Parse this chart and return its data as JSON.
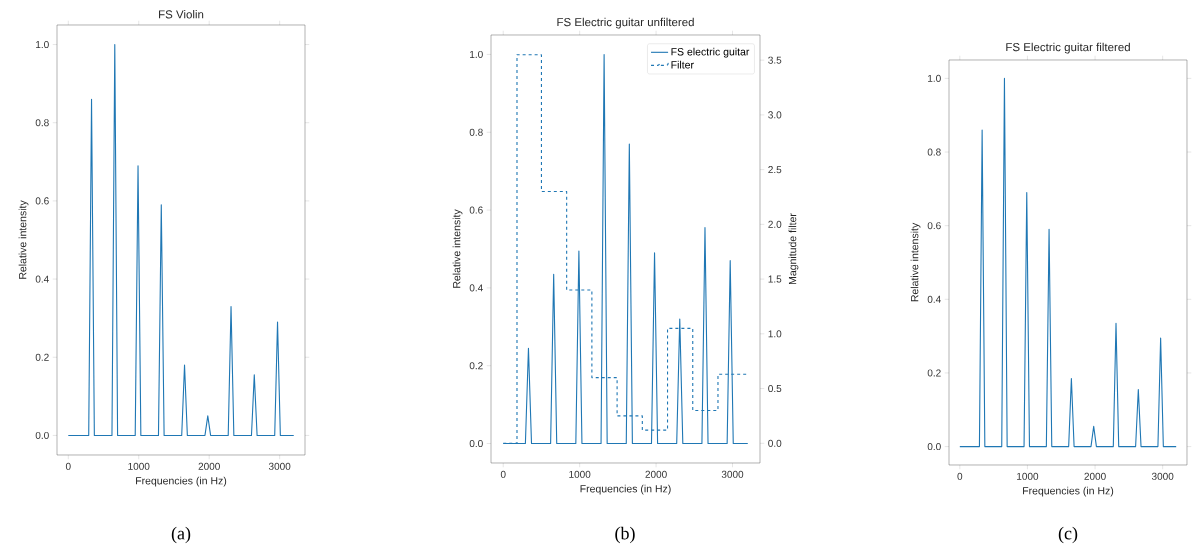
{
  "chart_data": [
    {
      "type": "line",
      "title": "FS Violin",
      "xlabel": "Frequencies (in Hz)",
      "ylabel": "Relative intensity",
      "annotations": [
        "(a)"
      ],
      "xlim": [
        -160,
        3360
      ],
      "ylim": [
        -0.05,
        1.05
      ],
      "xticks": [
        0,
        1000,
        2000,
        3000
      ],
      "yticks": [
        {
          "value": 0,
          "label": "0.0"
        },
        {
          "value": 0.2,
          "label": "0.2"
        },
        {
          "value": 0.4,
          "label": "0.4"
        },
        {
          "value": 0.6,
          "label": "0.6"
        },
        {
          "value": 0.8,
          "label": "0.8"
        },
        {
          "value": 1.0,
          "label": "1.0"
        }
      ],
      "series": [
        {
          "color": "#1f77b4",
          "x": [
            0,
            290,
            330,
            370,
            620,
            660,
            700,
            950,
            990,
            1030,
            1280,
            1320,
            1360,
            1610,
            1650,
            1690,
            1940,
            1980,
            2020,
            2270,
            2310,
            2350,
            2600,
            2640,
            2680,
            2930,
            2970,
            3010,
            3200
          ],
          "values": [
            0,
            0,
            0.86,
            0,
            0,
            1.0,
            0,
            0,
            0.69,
            0,
            0,
            0.59,
            0,
            0,
            0.18,
            0,
            0,
            0.05,
            0,
            0,
            0.33,
            0,
            0,
            0.155,
            0,
            0,
            0.29,
            0,
            0
          ]
        }
      ]
    },
    {
      "type": "line",
      "title": "FS Electric guitar unfiltered",
      "xlabel": "Frequencies (in Hz)",
      "ylabel": "Relative intensity",
      "y2label": "Magnitude filter",
      "annotations": [
        "(b)"
      ],
      "xlim": [
        -160,
        3360
      ],
      "ylim": [
        -0.05,
        1.05
      ],
      "y2lim": [
        -0.18,
        3.73
      ],
      "xticks": [
        0,
        1000,
        2000,
        3000
      ],
      "yticks": [
        {
          "value": 0,
          "label": "0.0"
        },
        {
          "value": 0.2,
          "label": "0.2"
        },
        {
          "value": 0.4,
          "label": "0.4"
        },
        {
          "value": 0.6,
          "label": "0.6"
        },
        {
          "value": 0.8,
          "label": "0.8"
        },
        {
          "value": 1.0,
          "label": "1.0"
        }
      ],
      "y2ticks": [
        {
          "value": 0,
          "label": "0.0"
        },
        {
          "value": 0.5,
          "label": "0.5"
        },
        {
          "value": 1.0,
          "label": "1.0"
        },
        {
          "value": 1.5,
          "label": "1.5"
        },
        {
          "value": 2.0,
          "label": "2.0"
        },
        {
          "value": 2.5,
          "label": "2.5"
        },
        {
          "value": 3.0,
          "label": "3.0"
        },
        {
          "value": 3.5,
          "label": "3.5"
        }
      ],
      "legend": "top right",
      "series": [
        {
          "name": "FS electric guitar",
          "color": "#1f77b4",
          "line_style": "solid",
          "x": [
            0,
            290,
            330,
            370,
            620,
            660,
            700,
            950,
            990,
            1030,
            1280,
            1320,
            1360,
            1610,
            1650,
            1690,
            1940,
            1980,
            2020,
            2270,
            2310,
            2350,
            2600,
            2640,
            2680,
            2930,
            2970,
            3010,
            3200
          ],
          "values": [
            0,
            0,
            0.245,
            0,
            0,
            0.435,
            0,
            0,
            0.495,
            0,
            0,
            1.0,
            0,
            0,
            0.77,
            0,
            0,
            0.49,
            0,
            0,
            0.32,
            0,
            0,
            0.555,
            0,
            0,
            0.47,
            0,
            0
          ]
        },
        {
          "name": "Filter",
          "type": "step",
          "axis": "y2",
          "color": "#1f77b4",
          "line_style": "dashed",
          "x": [
            0,
            180,
            500,
            830,
            1160,
            1490,
            1820,
            2150,
            2480,
            2810,
            3200
          ],
          "values": [
            0,
            3.55,
            2.3,
            1.4,
            0.6,
            0.25,
            0.12,
            1.05,
            0.3,
            0.63,
            0.63
          ]
        }
      ]
    },
    {
      "type": "line",
      "title": "FS Electric guitar filtered",
      "xlabel": "Frequencies (in Hz)",
      "ylabel": "Relative intensity",
      "annotations": [
        "(c)"
      ],
      "xlim": [
        -160,
        3360
      ],
      "ylim": [
        -0.05,
        1.05
      ],
      "xticks": [
        0,
        1000,
        2000,
        3000
      ],
      "yticks": [
        {
          "value": 0,
          "label": "0.0"
        },
        {
          "value": 0.2,
          "label": "0.2"
        },
        {
          "value": 0.4,
          "label": "0.4"
        },
        {
          "value": 0.6,
          "label": "0.6"
        },
        {
          "value": 0.8,
          "label": "0.8"
        },
        {
          "value": 1.0,
          "label": "1.0"
        }
      ],
      "series": [
        {
          "color": "#1f77b4",
          "x": [
            0,
            290,
            330,
            370,
            620,
            660,
            700,
            950,
            990,
            1030,
            1280,
            1320,
            1360,
            1610,
            1650,
            1690,
            1940,
            1980,
            2020,
            2270,
            2310,
            2350,
            2600,
            2640,
            2680,
            2930,
            2970,
            3010,
            3200
          ],
          "values": [
            0,
            0,
            0.86,
            0,
            0,
            1.0,
            0,
            0,
            0.69,
            0,
            0,
            0.59,
            0,
            0,
            0.185,
            0,
            0,
            0.055,
            0,
            0,
            0.335,
            0,
            0,
            0.155,
            0,
            0,
            0.295,
            0,
            0
          ]
        }
      ]
    }
  ]
}
